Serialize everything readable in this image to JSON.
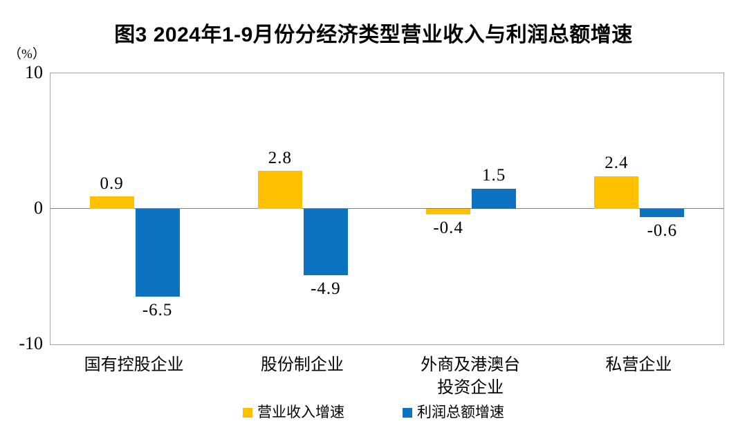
{
  "chart_data": {
    "type": "bar",
    "title": "图3 2024年1-9月份分经济类型营业收入与利润总额增速",
    "ylabel": "（%）",
    "ylim": [
      -10,
      10
    ],
    "yticks": [
      10,
      0,
      -10
    ],
    "grid": false,
    "legend_position": "bottom",
    "categories": [
      "国有控股企业",
      "股份制企业",
      "外商及港澳台\n投资企业",
      "私营企业"
    ],
    "series": [
      {
        "name": "营业收入增速",
        "color": "#FFC000",
        "values": [
          0.9,
          2.8,
          -0.4,
          2.4
        ]
      },
      {
        "name": "利润总额增速",
        "color": "#0D72BF",
        "values": [
          -6.5,
          -4.9,
          1.5,
          -0.6
        ]
      }
    ],
    "value_label_decimals": 1,
    "axis_border_color": "#A6A6A6",
    "zero_line_color": "#808080",
    "text_color": "#000000",
    "background_color": "#FFFFFF"
  }
}
